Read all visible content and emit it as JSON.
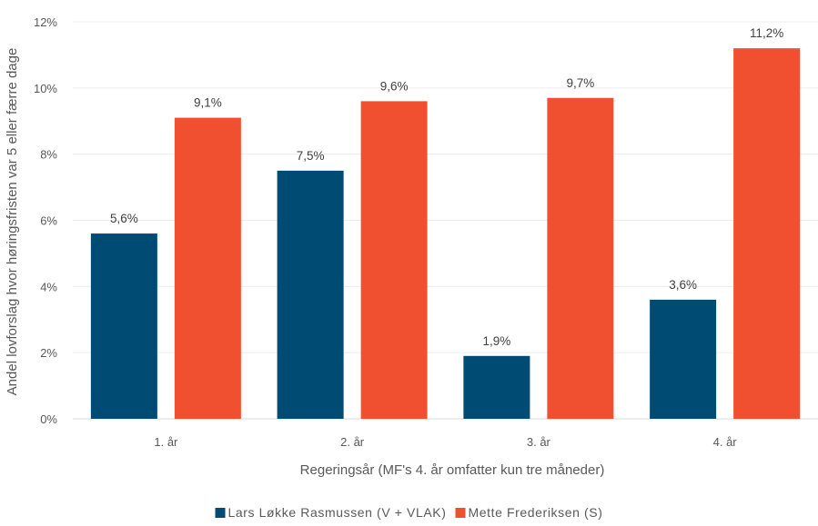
{
  "chart_data": {
    "type": "bar",
    "categories": [
      "1. år",
      "2. år",
      "3. år",
      "4. år"
    ],
    "series": [
      {
        "name": "Lars Løkke Rasmussen (V + VLAK)",
        "color": "#004B74",
        "values": [
          5.6,
          7.5,
          1.9,
          3.6
        ],
        "labels": [
          "5,6%",
          "7,5%",
          "1,9%",
          "3,6%"
        ]
      },
      {
        "name": "Mette Frederiksen (S)",
        "color": "#F05030",
        "values": [
          9.1,
          9.6,
          9.7,
          11.2
        ],
        "labels": [
          "9,1%",
          "9,6%",
          "9,7%",
          "11,2%"
        ]
      }
    ],
    "xlabel": "Regeringsår (MF's 4. år omfatter kun tre måneder)",
    "ylabel": "Andel lovforslag hvor høringsfristen var 5 eller færre dage",
    "ylim": [
      0,
      12
    ],
    "yticks": [
      0,
      2,
      4,
      6,
      8,
      10,
      12
    ],
    "ytick_labels": [
      "0%",
      "2%",
      "4%",
      "6%",
      "8%",
      "10%",
      "12%"
    ],
    "grid": true,
    "legend_position": "bottom"
  }
}
